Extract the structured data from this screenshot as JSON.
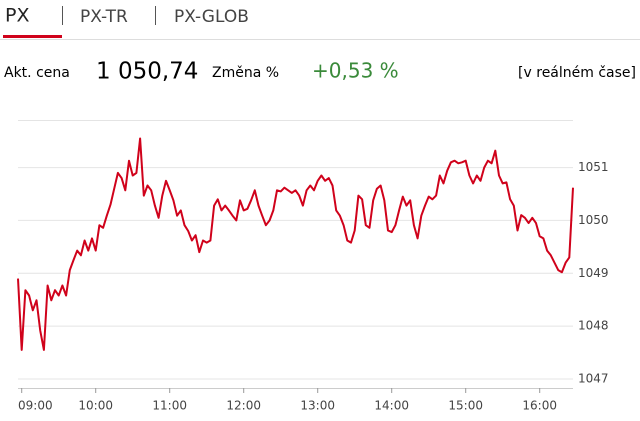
{
  "tabs": [
    "PX",
    "PX-TR",
    "PX-GLOB"
  ],
  "quote": {
    "price_label": "Akt. cena",
    "price": "1 050,74",
    "change_label": "Změna %",
    "change": "+0,53 %",
    "realtime": "[v reálném čase]"
  },
  "chart_data": {
    "type": "line",
    "color": "#d0021b",
    "grid": true,
    "xlim": [
      8.95,
      16.45
    ],
    "xticks": [
      {
        "value": 9,
        "label": "09:00"
      },
      {
        "value": 10,
        "label": "10:00"
      },
      {
        "value": 11,
        "label": "11:00"
      },
      {
        "value": 12,
        "label": "12:00"
      },
      {
        "value": 13,
        "label": "13:00"
      },
      {
        "value": 14,
        "label": "14:00"
      },
      {
        "value": 15,
        "label": "15:00"
      },
      {
        "value": 16,
        "label": "16:00"
      }
    ],
    "ylim": [
      1046.83,
      1051.9
    ],
    "yticks": [
      1047,
      1048,
      1049,
      1050,
      1051
    ],
    "x": [
      8.95,
      9,
      9.05,
      9.1,
      9.15,
      9.2,
      9.25,
      9.3,
      9.35,
      9.4,
      9.45,
      9.5,
      9.55,
      9.6,
      9.65,
      9.7,
      9.75,
      9.8,
      9.85,
      9.9,
      9.95,
      10,
      10.05,
      10.1,
      10.15,
      10.2,
      10.25,
      10.3,
      10.35,
      10.4,
      10.45,
      10.5,
      10.55,
      10.6,
      10.65,
      10.7,
      10.75,
      10.8,
      10.85,
      10.9,
      10.95,
      11,
      11.05,
      11.1,
      11.15,
      11.2,
      11.25,
      11.3,
      11.35,
      11.4,
      11.45,
      11.5,
      11.55,
      11.6,
      11.65,
      11.7,
      11.75,
      11.8,
      11.85,
      11.9,
      11.95,
      12,
      12.05,
      12.1,
      12.15,
      12.2,
      12.25,
      12.3,
      12.35,
      12.4,
      12.45,
      12.5,
      12.55,
      12.6,
      12.65,
      12.7,
      12.75,
      12.8,
      12.85,
      12.9,
      12.95,
      13,
      13.05,
      13.1,
      13.15,
      13.2,
      13.25,
      13.3,
      13.35,
      13.4,
      13.45,
      13.5,
      13.55,
      13.6,
      13.65,
      13.7,
      13.75,
      13.8,
      13.85,
      13.9,
      13.95,
      14,
      14.05,
      14.1,
      14.15,
      14.2,
      14.25,
      14.3,
      14.35,
      14.4,
      14.45,
      14.5,
      14.55,
      14.6,
      14.65,
      14.7,
      14.75,
      14.8,
      14.85,
      14.9,
      14.95,
      15,
      15.05,
      15.1,
      15.15,
      15.2,
      15.25,
      15.3,
      15.35,
      15.4,
      15.45,
      15.5,
      15.55,
      15.6,
      15.65,
      15.7,
      15.75,
      15.8,
      15.85,
      15.9,
      15.95,
      16,
      16.05,
      16.1,
      16.15,
      16.2,
      16.25,
      16.3,
      16.35,
      16.4,
      16.45
    ],
    "values": [
      1048.9,
      1047.55,
      1048.68,
      1048.58,
      1048.3,
      1048.49,
      1047.92,
      1047.55,
      1048.77,
      1048.49,
      1048.68,
      1048.58,
      1048.77,
      1048.58,
      1049.06,
      1049.25,
      1049.43,
      1049.34,
      1049.62,
      1049.43,
      1049.66,
      1049.43,
      1049.91,
      1049.86,
      1050.09,
      1050.3,
      1050.6,
      1050.9,
      1050.8,
      1050.57,
      1051.13,
      1050.85,
      1050.9,
      1051.55,
      1050.47,
      1050.66,
      1050.57,
      1050.28,
      1050.05,
      1050.47,
      1050.75,
      1050.57,
      1050.38,
      1050.09,
      1050.19,
      1049.91,
      1049.8,
      1049.62,
      1049.72,
      1049.4,
      1049.62,
      1049.58,
      1049.62,
      1050.28,
      1050.4,
      1050.19,
      1050.28,
      1050.19,
      1050.09,
      1050,
      1050.38,
      1050.19,
      1050.22,
      1050.38,
      1050.57,
      1050.28,
      1050.09,
      1049.91,
      1050,
      1050.19,
      1050.57,
      1050.55,
      1050.62,
      1050.57,
      1050.52,
      1050.57,
      1050.47,
      1050.28,
      1050.57,
      1050.66,
      1050.57,
      1050.75,
      1050.85,
      1050.75,
      1050.8,
      1050.66,
      1050.19,
      1050.09,
      1049.91,
      1049.62,
      1049.58,
      1049.81,
      1050.47,
      1050.4,
      1049.91,
      1049.86,
      1050.38,
      1050.6,
      1050.66,
      1050.38,
      1049.81,
      1049.78,
      1049.91,
      1050.19,
      1050.45,
      1050.28,
      1050.38,
      1049.91,
      1049.66,
      1050.09,
      1050.28,
      1050.45,
      1050.4,
      1050.47,
      1050.85,
      1050.7,
      1050.94,
      1051.1,
      1051.13,
      1051.08,
      1051.1,
      1051.13,
      1050.85,
      1050.7,
      1050.85,
      1050.75,
      1051,
      1051.13,
      1051.08,
      1051.32,
      1050.85,
      1050.7,
      1050.72,
      1050.4,
      1050.28,
      1049.81,
      1050.1,
      1050.05,
      1049.95,
      1050.05,
      1049.95,
      1049.7,
      1049.66,
      1049.43,
      1049.34,
      1049.2,
      1049.06,
      1049.02,
      1049.2,
      1049.3,
      1050.62
    ]
  }
}
